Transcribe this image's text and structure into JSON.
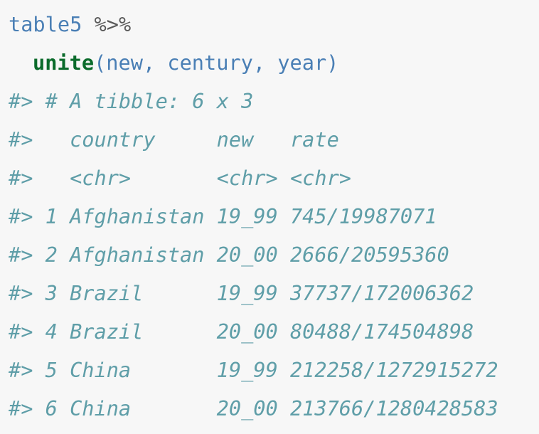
{
  "code": {
    "input": [
      [
        "table5",
        "%>%"
      ],
      [
        "unite",
        "(new, century, year)"
      ]
    ],
    "output": [
      "#> # A tibble: 6 x 3",
      "#>   country     new   rate",
      "#>   <chr>       <chr> <chr>",
      "#> 1 Afghanistan 19_99 745/19987071",
      "#> 2 Afghanistan 20_00 2666/20595360",
      "#> 3 Brazil      19_99 37737/172006362",
      "#> 4 Brazil      20_00 80488/174504898",
      "#> 5 China       19_99 212258/1272915272",
      "#> 6 China       20_00 213766/1280428583"
    ]
  }
}
